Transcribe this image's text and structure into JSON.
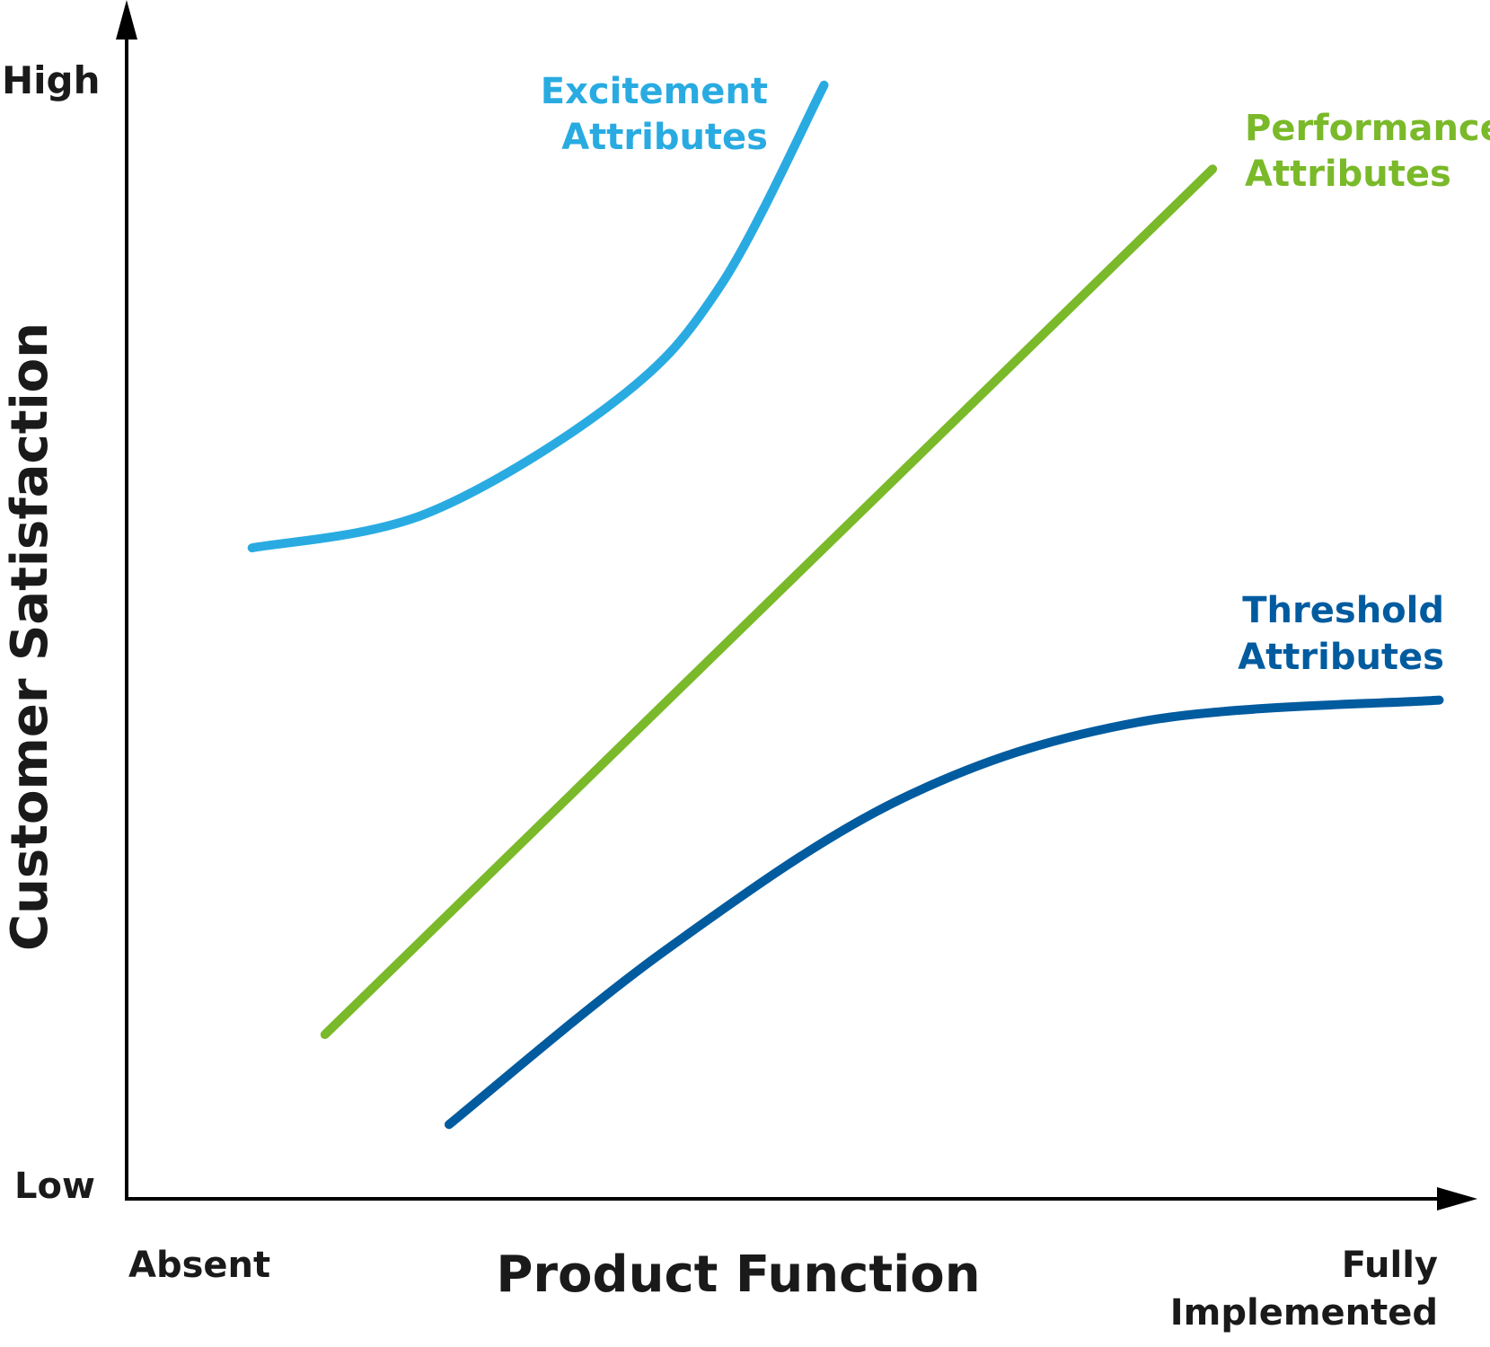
{
  "chart_data": {
    "type": "line",
    "title": "",
    "xlabel": "Product Function",
    "ylabel": "Customer Satisfaction",
    "x_tick_labels": {
      "min": "Absent",
      "max_line1": "Fully",
      "max_line2": "Implemented"
    },
    "y_tick_labels": {
      "min": "Low",
      "max": "High"
    },
    "xlim": [
      0,
      10
    ],
    "ylim": [
      0,
      10
    ],
    "grid": false,
    "series": [
      {
        "name_line1": "Excitement",
        "name_line2": "Attributes",
        "color": "#29abe2",
        "x": [
          0.93,
          2.23,
          3.64,
          4.41,
          5.17
        ],
        "y": [
          5.43,
          5.72,
          6.67,
          7.63,
          9.29
        ]
      },
      {
        "name_line1": "Performance",
        "name_line2": "Attributes",
        "color": "#7ab929",
        "x": [
          1.47,
          8.05
        ],
        "y": [
          1.37,
          8.59
        ]
      },
      {
        "name_line1": "Threshold",
        "name_line2": "Attributes",
        "color": "#005b9f",
        "x": [
          2.39,
          3.99,
          5.75,
          7.52,
          9.73
        ],
        "y": [
          0.62,
          2.07,
          3.34,
          3.98,
          4.16
        ]
      }
    ],
    "axis_color": "#000000",
    "text_color": "#1a1a1a"
  }
}
